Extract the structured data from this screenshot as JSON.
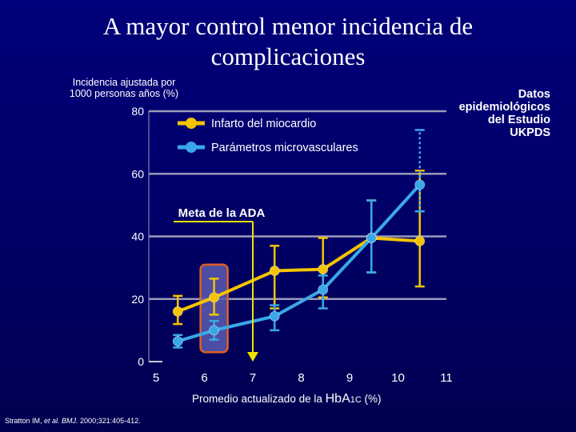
{
  "title_line1": "A mayor control menor incidencia de",
  "title_line2": "complicaciones",
  "ylabel_line1": "Incidencia ajustada por",
  "ylabel_line2": "1000 personas años (%)",
  "source_lines": [
    "Datos",
    "epidemiológicos",
    "del Estudio",
    "UKPDS"
  ],
  "xlabel": {
    "pre": "Promedio actualizado de la ",
    "hb": "HbA",
    "sub": "1C",
    "post": " (%)"
  },
  "citation": {
    "authors": "Stratton IM, ",
    "etal": "et al. BMJ.",
    "rest": " 2000;321:405-412."
  },
  "annotation": "Meta de la ADA",
  "chart_data": {
    "type": "line",
    "xlabel": "Promedio actualizado de la HbA1C (%)",
    "ylabel": "Incidencia ajustada por 1000 personas años (%)",
    "xlim": [
      5,
      11
    ],
    "ylim": [
      0,
      80
    ],
    "xticks": [
      5,
      6,
      7,
      8,
      9,
      10,
      11
    ],
    "yticks": [
      0,
      20,
      40,
      60,
      80
    ],
    "grid": "horizontal",
    "legend_position": "top-center",
    "ada_goal_x": 7,
    "series": [
      {
        "name": "Infarto del miocardio",
        "color": "#f5c400",
        "x": [
          5.45,
          6.2,
          7.45,
          8.45,
          9.45,
          10.45
        ],
        "y": [
          16,
          20.5,
          29,
          29.5,
          39.5,
          38.5
        ],
        "err_low": [
          12,
          15,
          17,
          20.5,
          28.5,
          24
        ],
        "err_high": [
          21,
          26.5,
          37,
          39.5,
          51.5,
          61
        ]
      },
      {
        "name": "Parámetros microvasculares",
        "color": "#3aa8e8",
        "x": [
          5.45,
          6.2,
          7.45,
          8.45,
          9.45,
          10.45
        ],
        "y": [
          6.5,
          10,
          14.5,
          23,
          39.5,
          56.5
        ],
        "err_low": [
          4.5,
          7,
          10,
          17,
          28.5,
          48
        ],
        "err_high": [
          8.5,
          13,
          18,
          27.5,
          51.5,
          74
        ]
      }
    ]
  }
}
